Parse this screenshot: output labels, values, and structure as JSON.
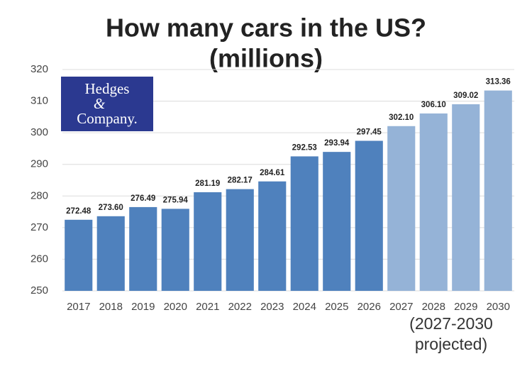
{
  "chart_data": {
    "type": "bar",
    "title": "How many cars in the US?",
    "subtitle": "(millions)",
    "logo": {
      "line1": "Hedges",
      "symbol": "&",
      "line2": "Company."
    },
    "annotation": [
      "(2027-2030",
      "projected)"
    ],
    "categories": [
      "2017",
      "2018",
      "2019",
      "2020",
      "2021",
      "2022",
      "2023",
      "2024",
      "2025",
      "2026",
      "2027",
      "2028",
      "2029",
      "2030"
    ],
    "values": [
      272.48,
      273.6,
      276.49,
      275.94,
      281.19,
      282.17,
      284.61,
      292.53,
      293.94,
      297.45,
      302.1,
      306.1,
      309.02,
      313.36
    ],
    "value_labels": [
      "272.48",
      "273.60",
      "276.49",
      "275.94",
      "281.19",
      "282.17",
      "284.61",
      "292.53",
      "293.94",
      "297.45",
      "302.10",
      "306.10",
      "309.02",
      "313.36"
    ],
    "colors": [
      "#4f81bd",
      "#4f81bd",
      "#4f81bd",
      "#4f81bd",
      "#4f81bd",
      "#4f81bd",
      "#4f81bd",
      "#4f81bd",
      "#4f81bd",
      "#4f81bd",
      "#95b3d7",
      "#95b3d7",
      "#95b3d7",
      "#95b3d7"
    ],
    "ylim": [
      250,
      320
    ],
    "yticks": [
      250,
      260,
      270,
      280,
      290,
      300,
      310,
      320
    ],
    "grid": true
  }
}
